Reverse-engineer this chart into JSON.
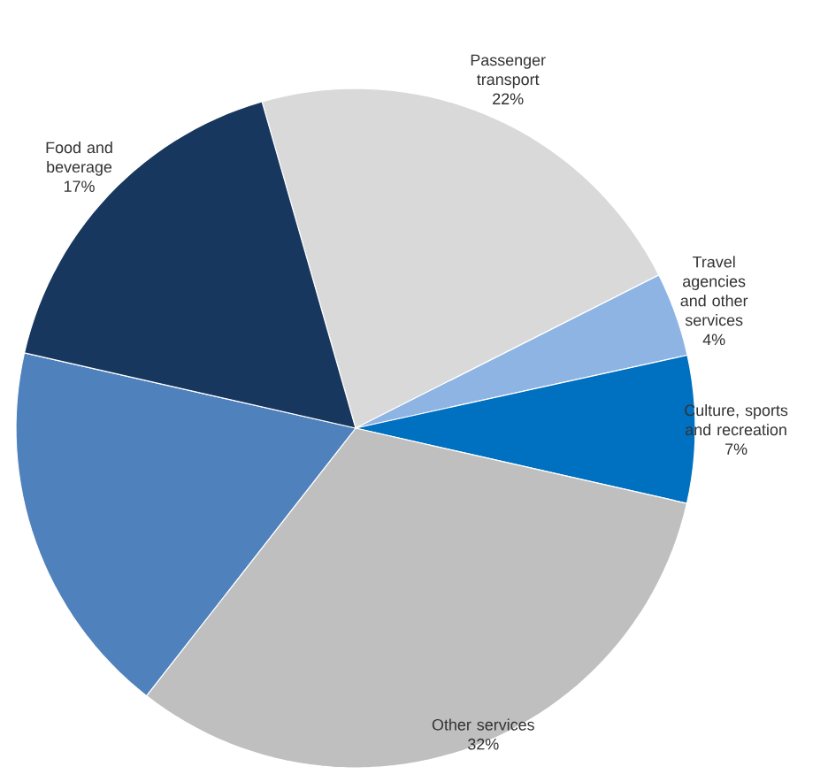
{
  "chart_data": {
    "type": "pie",
    "categories": [
      "Passenger transport",
      "Travel agencies and other services",
      "Culture, sports and recreation",
      "Other services",
      null,
      "Food and beverage"
    ],
    "values": [
      22,
      4,
      7,
      32,
      18,
      17
    ],
    "value_labels": [
      "22%",
      "4%",
      "7%",
      "32%",
      null,
      "17%"
    ],
    "colors": [
      "#d9d9d9",
      "#8eb4e3",
      "#0070c0",
      "#bfbfbf",
      "#4f81bd",
      "#17375e"
    ]
  }
}
